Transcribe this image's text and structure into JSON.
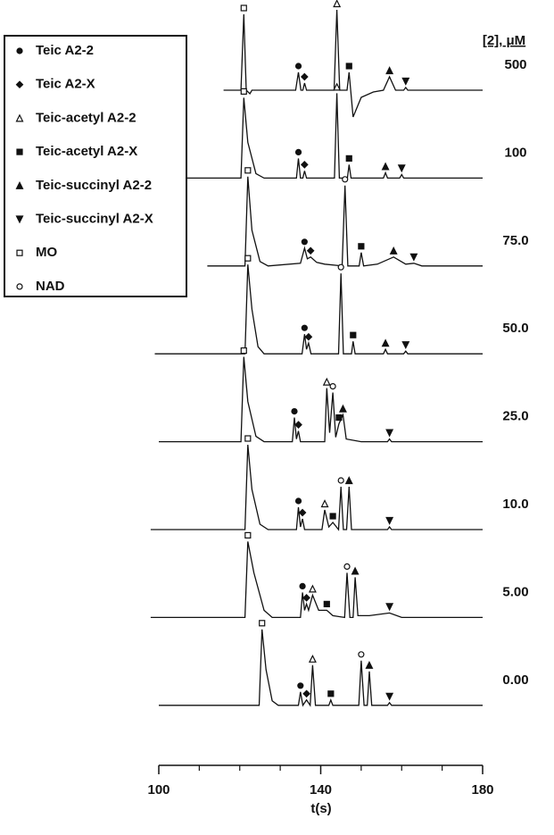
{
  "chart_data": {
    "type": "stacked-line",
    "xlabel": "t(s)",
    "xlim": [
      100,
      180
    ],
    "xticks": [
      100,
      140,
      180
    ],
    "xminorticks": [
      110,
      120,
      130,
      150,
      160,
      170
    ],
    "color": "#111111",
    "series_title": "[2], μM",
    "legend_position": "upper left",
    "legend": [
      {
        "name": "Teic A2-2",
        "symbol": "circle"
      },
      {
        "name": "Teic A2-X",
        "symbol": "diamond"
      },
      {
        "name": "Teic-acetyl A2-2",
        "symbol": "triangle-open"
      },
      {
        "name": "Teic-acetyl A2-X",
        "symbol": "square"
      },
      {
        "name": "Teic-succinyl A2-2",
        "symbol": "triangle"
      },
      {
        "name": "Teic-succinyl A2-X",
        "symbol": "triangle-down"
      },
      {
        "name": "MO",
        "symbol": "square-open"
      },
      {
        "name": "NAD",
        "symbol": "circle-open"
      }
    ],
    "series": [
      {
        "name": "500",
        "x": [
          116,
          120.3,
          121,
          121.6,
          122.5,
          123,
          133.8,
          134.5,
          135.1,
          135.6,
          136,
          136.5,
          143.3,
          144,
          144.7,
          146.5,
          147,
          147.4,
          148,
          150,
          153,
          155.5,
          157,
          158.5,
          160.5,
          161,
          161.5,
          180
        ],
        "values": [
          0,
          0,
          85,
          0,
          -4,
          0,
          0,
          20,
          0,
          0,
          8,
          0,
          0,
          90,
          0,
          0,
          20,
          0,
          -30,
          -8,
          -2,
          0,
          15,
          0,
          0,
          3,
          0,
          0
        ],
        "peaks": [
          {
            "at": 2,
            "kind": 6
          },
          {
            "at": 7,
            "kind": 0
          },
          {
            "at": 10,
            "kind": 1
          },
          {
            "at": 13,
            "kind": 2
          },
          {
            "at": 16,
            "kind": 3
          },
          {
            "at": 22,
            "kind": 4
          },
          {
            "at": 25,
            "kind": 5
          }
        ]
      },
      {
        "name": "100",
        "x": [
          107,
          120.3,
          121,
          122,
          124,
          126,
          134,
          134.5,
          135,
          135.6,
          136,
          136.5,
          143.4,
          144,
          144.6,
          146.6,
          147,
          147.5,
          155.5,
          156,
          156.5,
          159.5,
          160,
          160.5,
          180
        ],
        "values": [
          0,
          0,
          90,
          40,
          5,
          0,
          0,
          22,
          0,
          0,
          8,
          0,
          0,
          95,
          0,
          0,
          15,
          0,
          0,
          6,
          0,
          0,
          4,
          0,
          0
        ],
        "peaks": [
          {
            "at": 2,
            "kind": 6
          },
          {
            "at": 7,
            "kind": 0
          },
          {
            "at": 10,
            "kind": 1
          },
          {
            "at": 13,
            "kind": 2
          },
          {
            "at": 16,
            "kind": 3
          },
          {
            "at": 19,
            "kind": 4
          },
          {
            "at": 22,
            "kind": 5
          }
        ]
      },
      {
        "name": "75.0",
        "x": [
          112,
          121.3,
          122,
          123,
          125,
          127,
          135,
          136,
          136.7,
          137.5,
          139,
          141,
          145.3,
          146,
          146.7,
          149.5,
          150,
          150.6,
          154,
          158,
          161,
          163,
          165,
          180
        ],
        "values": [
          0,
          0,
          100,
          40,
          5,
          0,
          3,
          20,
          8,
          10,
          4,
          2,
          0,
          90,
          0,
          0,
          15,
          0,
          2,
          10,
          2,
          3,
          0,
          0
        ],
        "peaks": [
          {
            "at": 2,
            "kind": 6
          },
          {
            "at": 7,
            "kind": 0
          },
          {
            "at": 9,
            "kind": 1
          },
          {
            "at": 13,
            "kind": 7
          },
          {
            "at": 16,
            "kind": 3
          },
          {
            "at": 19,
            "kind": 4
          },
          {
            "at": 21,
            "kind": 5
          }
        ]
      },
      {
        "name": "50.0",
        "x": [
          99,
          121.3,
          122,
          123,
          124.5,
          126,
          135.4,
          136,
          136.5,
          137,
          137.6,
          144.4,
          145,
          145.6,
          147.6,
          148,
          148.5,
          155.5,
          156,
          156.5,
          160.5,
          161,
          161.5,
          180
        ],
        "values": [
          0,
          0,
          100,
          50,
          8,
          0,
          0,
          22,
          5,
          12,
          0,
          0,
          90,
          0,
          0,
          14,
          0,
          0,
          5,
          0,
          0,
          3,
          0,
          0
        ],
        "peaks": [
          {
            "at": 2,
            "kind": 6
          },
          {
            "at": 7,
            "kind": 0
          },
          {
            "at": 9,
            "kind": 1
          },
          {
            "at": 12,
            "kind": 7
          },
          {
            "at": 15,
            "kind": 3
          },
          {
            "at": 18,
            "kind": 4
          },
          {
            "at": 21,
            "kind": 5
          }
        ]
      },
      {
        "name": "25.0",
        "x": [
          100,
          120.3,
          121,
          122,
          124,
          126,
          133,
          133.5,
          134,
          134.5,
          135,
          141,
          141.5,
          142.2,
          143,
          143.7,
          144.5,
          145.5,
          146.3,
          150,
          156.5,
          157,
          157.5,
          180
        ],
        "values": [
          0,
          0,
          95,
          45,
          6,
          0,
          0,
          27,
          3,
          12,
          0,
          0,
          60,
          10,
          55,
          5,
          20,
          30,
          3,
          0,
          0,
          3,
          0,
          0
        ],
        "peaks": [
          {
            "at": 2,
            "kind": 6
          },
          {
            "at": 7,
            "kind": 0
          },
          {
            "at": 9,
            "kind": 1
          },
          {
            "at": 12,
            "kind": 2
          },
          {
            "at": 14,
            "kind": 7
          },
          {
            "at": 16,
            "kind": 3
          },
          {
            "at": 17,
            "kind": 4
          },
          {
            "at": 21,
            "kind": 5
          }
        ]
      },
      {
        "name": "10.0",
        "x": [
          98,
          121.3,
          122,
          123,
          125,
          127,
          134,
          134.5,
          135,
          135.5,
          136,
          140.3,
          141,
          142,
          143,
          144.4,
          145,
          145.6,
          146.4,
          147,
          147.6,
          156.5,
          157,
          157.5,
          180
        ],
        "values": [
          0,
          0,
          95,
          45,
          6,
          0,
          0,
          25,
          3,
          12,
          0,
          0,
          22,
          3,
          8,
          0,
          48,
          0,
          0,
          48,
          0,
          0,
          3,
          0,
          0
        ],
        "peaks": [
          {
            "at": 2,
            "kind": 6
          },
          {
            "at": 7,
            "kind": 0
          },
          {
            "at": 9,
            "kind": 1
          },
          {
            "at": 12,
            "kind": 2
          },
          {
            "at": 14,
            "kind": 3
          },
          {
            "at": 16,
            "kind": 7
          },
          {
            "at": 19,
            "kind": 4
          },
          {
            "at": 22,
            "kind": 5
          }
        ]
      },
      {
        "name": "5.00",
        "x": [
          98,
          121.3,
          122,
          123.5,
          126,
          128,
          135,
          135.5,
          136,
          136.5,
          137,
          138,
          139.5,
          141.5,
          143,
          145.9,
          146.5,
          147.2,
          148,
          148.5,
          149.2,
          152,
          157,
          160,
          180
        ],
        "values": [
          0,
          0,
          85,
          50,
          8,
          0,
          0,
          28,
          8,
          15,
          8,
          25,
          8,
          8,
          2,
          0,
          50,
          0,
          0,
          45,
          2,
          2,
          5,
          0,
          0
        ],
        "peaks": [
          {
            "at": 2,
            "kind": 6
          },
          {
            "at": 7,
            "kind": 0
          },
          {
            "at": 9,
            "kind": 1
          },
          {
            "at": 11,
            "kind": 2
          },
          {
            "at": 13,
            "kind": 3
          },
          {
            "at": 16,
            "kind": 7
          },
          {
            "at": 19,
            "kind": 4
          },
          {
            "at": 22,
            "kind": 5
          }
        ]
      },
      {
        "name": "0.00",
        "x": [
          100,
          124.8,
          125.5,
          126.5,
          128,
          129.5,
          134.5,
          135,
          135.6,
          136.5,
          137.4,
          138,
          138.7,
          142,
          142.5,
          143,
          149.4,
          150,
          150.7,
          151.5,
          152,
          152.6,
          156.5,
          157,
          157.5,
          180
        ],
        "values": [
          0,
          0,
          85,
          40,
          5,
          0,
          0,
          15,
          0,
          6,
          0,
          45,
          0,
          0,
          6,
          0,
          0,
          50,
          0,
          0,
          38,
          0,
          0,
          3,
          0,
          0
        ],
        "peaks": [
          {
            "at": 2,
            "kind": 6
          },
          {
            "at": 7,
            "kind": 0
          },
          {
            "at": 9,
            "kind": 1
          },
          {
            "at": 11,
            "kind": 2
          },
          {
            "at": 14,
            "kind": 3
          },
          {
            "at": 17,
            "kind": 7
          },
          {
            "at": 20,
            "kind": 4
          },
          {
            "at": 23,
            "kind": 5
          }
        ]
      }
    ]
  }
}
